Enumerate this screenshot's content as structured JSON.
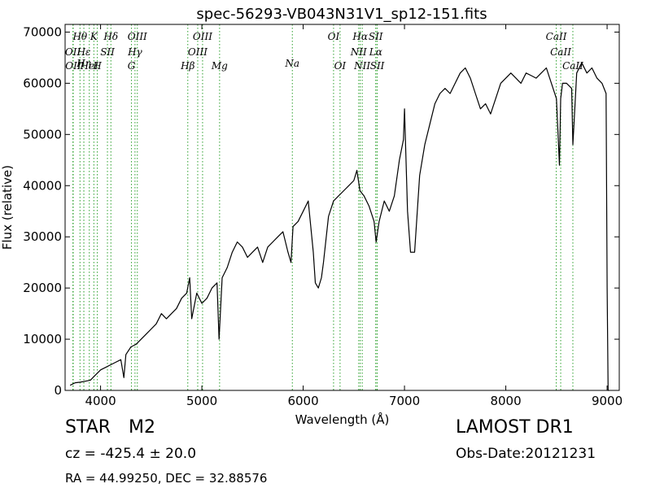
{
  "chart_data": {
    "type": "line",
    "title": "spec-56293-VB043N31V1_sp12-151.fits",
    "xlabel": "Wavelength (Å)",
    "ylabel": "Flux (relative)",
    "xlim": [
      3650,
      9120
    ],
    "ylim": [
      0,
      71500
    ],
    "xticks": [
      4000,
      5000,
      6000,
      7000,
      8000,
      9000
    ],
    "yticks": [
      0,
      10000,
      20000,
      30000,
      40000,
      50000,
      60000,
      70000
    ],
    "grid": false,
    "series": [
      {
        "color": "#000000",
        "x": [
          3700,
          3750,
          3800,
          3850,
          3900,
          3950,
          4000,
          4050,
          4100,
          4150,
          4200,
          4230,
          4250,
          4300,
          4350,
          4400,
          4450,
          4500,
          4550,
          4600,
          4650,
          4700,
          4750,
          4800,
          4850,
          4880,
          4900,
          4950,
          5000,
          5050,
          5100,
          5150,
          5170,
          5200,
          5250,
          5300,
          5350,
          5400,
          5450,
          5500,
          5550,
          5600,
          5650,
          5700,
          5750,
          5800,
          5850,
          5880,
          5900,
          5950,
          6000,
          6050,
          6100,
          6120,
          6150,
          6180,
          6200,
          6250,
          6300,
          6350,
          6400,
          6450,
          6500,
          6530,
          6560,
          6600,
          6650,
          6700,
          6720,
          6750,
          6800,
          6850,
          6900,
          6950,
          6990,
          7000,
          7030,
          7060,
          7100,
          7150,
          7200,
          7250,
          7300,
          7350,
          7400,
          7450,
          7500,
          7550,
          7600,
          7650,
          7700,
          7750,
          7800,
          7850,
          7900,
          7950,
          8000,
          8050,
          8100,
          8150,
          8200,
          8250,
          8300,
          8350,
          8400,
          8450,
          8500,
          8530,
          8542,
          8560,
          8600,
          8650,
          8662,
          8700,
          8750,
          8800,
          8850,
          8900,
          8950,
          8990,
          9000,
          9010,
          9020
        ],
        "y": [
          1000,
          1500,
          1600,
          1800,
          2000,
          3000,
          4000,
          4500,
          5000,
          5500,
          6000,
          2500,
          7000,
          8500,
          9000,
          10000,
          11000,
          12000,
          13000,
          15000,
          14000,
          15000,
          16000,
          18000,
          19000,
          22000,
          14000,
          19000,
          17000,
          18000,
          20000,
          21000,
          10000,
          22000,
          24000,
          27000,
          29000,
          28000,
          26000,
          27000,
          28000,
          25000,
          28000,
          29000,
          30000,
          31000,
          27000,
          25000,
          32000,
          33000,
          35000,
          37000,
          27000,
          21000,
          20000,
          22000,
          25000,
          34000,
          37000,
          38000,
          39000,
          40000,
          41000,
          43000,
          39000,
          38000,
          36000,
          33000,
          29000,
          33000,
          37000,
          35000,
          38000,
          45000,
          49000,
          55000,
          35000,
          27000,
          27000,
          42000,
          48000,
          52000,
          56000,
          58000,
          59000,
          58000,
          60000,
          62000,
          63000,
          61000,
          58000,
          55000,
          56000,
          54000,
          57000,
          60000,
          61000,
          62000,
          61000,
          60000,
          62000,
          61500,
          61000,
          62000,
          63000,
          60000,
          57000,
          44000,
          57000,
          60000,
          60000,
          59000,
          48000,
          62000,
          64000,
          62000,
          63000,
          61000,
          60000,
          58000,
          20000,
          0,
          0
        ]
      }
    ],
    "emission_lines": [
      {
        "label": "Hθ",
        "x": 3797,
        "row": 0
      },
      {
        "label": "K",
        "x": 3934,
        "row": 0
      },
      {
        "label": "Hδ",
        "x": 4102,
        "row": 0
      },
      {
        "label": "OIII",
        "x": 4363,
        "row": 0
      },
      {
        "label": "OIII",
        "x": 5007,
        "row": 0
      },
      {
        "label": "OI",
        "x": 6300,
        "row": 0
      },
      {
        "label": "Hα",
        "x": 6563,
        "row": 0
      },
      {
        "label": "SII",
        "x": 6716,
        "row": 0
      },
      {
        "label": "CaII",
        "x": 8498,
        "row": 0
      },
      {
        "label": "OII",
        "x": 3727,
        "row": 1
      },
      {
        "label": "Hε",
        "x": 3835,
        "row": 1
      },
      {
        "label": "SII",
        "x": 4068,
        "row": 1
      },
      {
        "label": "Hγ",
        "x": 4340,
        "row": 1
      },
      {
        "label": "OIII",
        "x": 4959,
        "row": 1
      },
      {
        "label": "NII",
        "x": 6548,
        "row": 1
      },
      {
        "label": "Lα",
        "x": 6717,
        "row": 1
      },
      {
        "label": "CaII",
        "x": 8542,
        "row": 1
      },
      {
        "label": "Hη",
        "x": 3835,
        "row": 2
      },
      {
        "label": "OII",
        "x": 3730,
        "row": 3
      },
      {
        "label": "HeI",
        "x": 3889,
        "row": 3
      },
      {
        "label": "H",
        "x": 3968,
        "row": 3
      },
      {
        "label": "G",
        "x": 4305,
        "row": 3
      },
      {
        "label": "Hβ",
        "x": 4861,
        "row": 3
      },
      {
        "label": "Mg",
        "x": 5175,
        "row": 3
      },
      {
        "label": "Na",
        "x": 5893,
        "row": 2
      },
      {
        "label": "OI",
        "x": 6364,
        "row": 3
      },
      {
        "label": "NII",
        "x": 6583,
        "row": 3
      },
      {
        "label": "SII",
        "x": 6731,
        "row": 3
      },
      {
        "label": "CaII",
        "x": 8662,
        "row": 3
      }
    ],
    "line_marker_color": "#2ca02c"
  },
  "info": {
    "object_class": "STAR",
    "object_subclass": "M2",
    "cz": "cz = -425.4  ± 20.0",
    "radec": "RA = 44.99250, DEC = 32.88576",
    "survey": "LAMOST DR1",
    "obs_date": "Obs-Date:20121231"
  }
}
